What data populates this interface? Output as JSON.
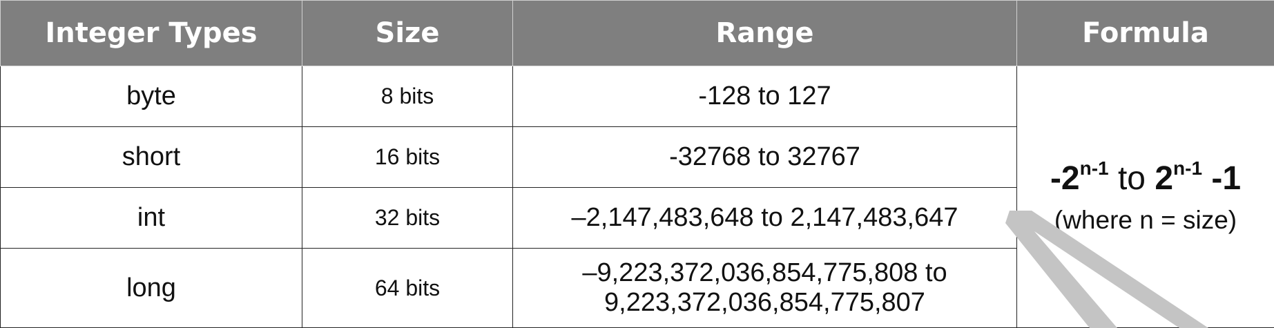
{
  "headers": [
    "Integer Types",
    "Size",
    "Range",
    "Formula"
  ],
  "rows": [
    {
      "type": "byte",
      "size": "8 bits",
      "range": [
        "-128 to 127"
      ]
    },
    {
      "type": "short",
      "size": "16 bits",
      "range": [
        "-32768 to 32767"
      ]
    },
    {
      "type": "int",
      "size": "32 bits",
      "range": [
        "–2,147,483,648 to 2,147,483,647"
      ]
    },
    {
      "type": "long",
      "size": "64 bits",
      "range": [
        "–9,223,372,036,854,775,808 to",
        "9,223,372,036,854,775,807"
      ]
    }
  ],
  "formula": {
    "neg_base": "-2",
    "exp1": "n-1",
    "to": " to ",
    "base": "2",
    "exp2": "n-1",
    "tail": " -1",
    "note": "(where n = size)"
  },
  "colors": {
    "header_bg": "#7f7f7f",
    "header_text": "#ffffff",
    "watermark": "#c4c4c4"
  }
}
